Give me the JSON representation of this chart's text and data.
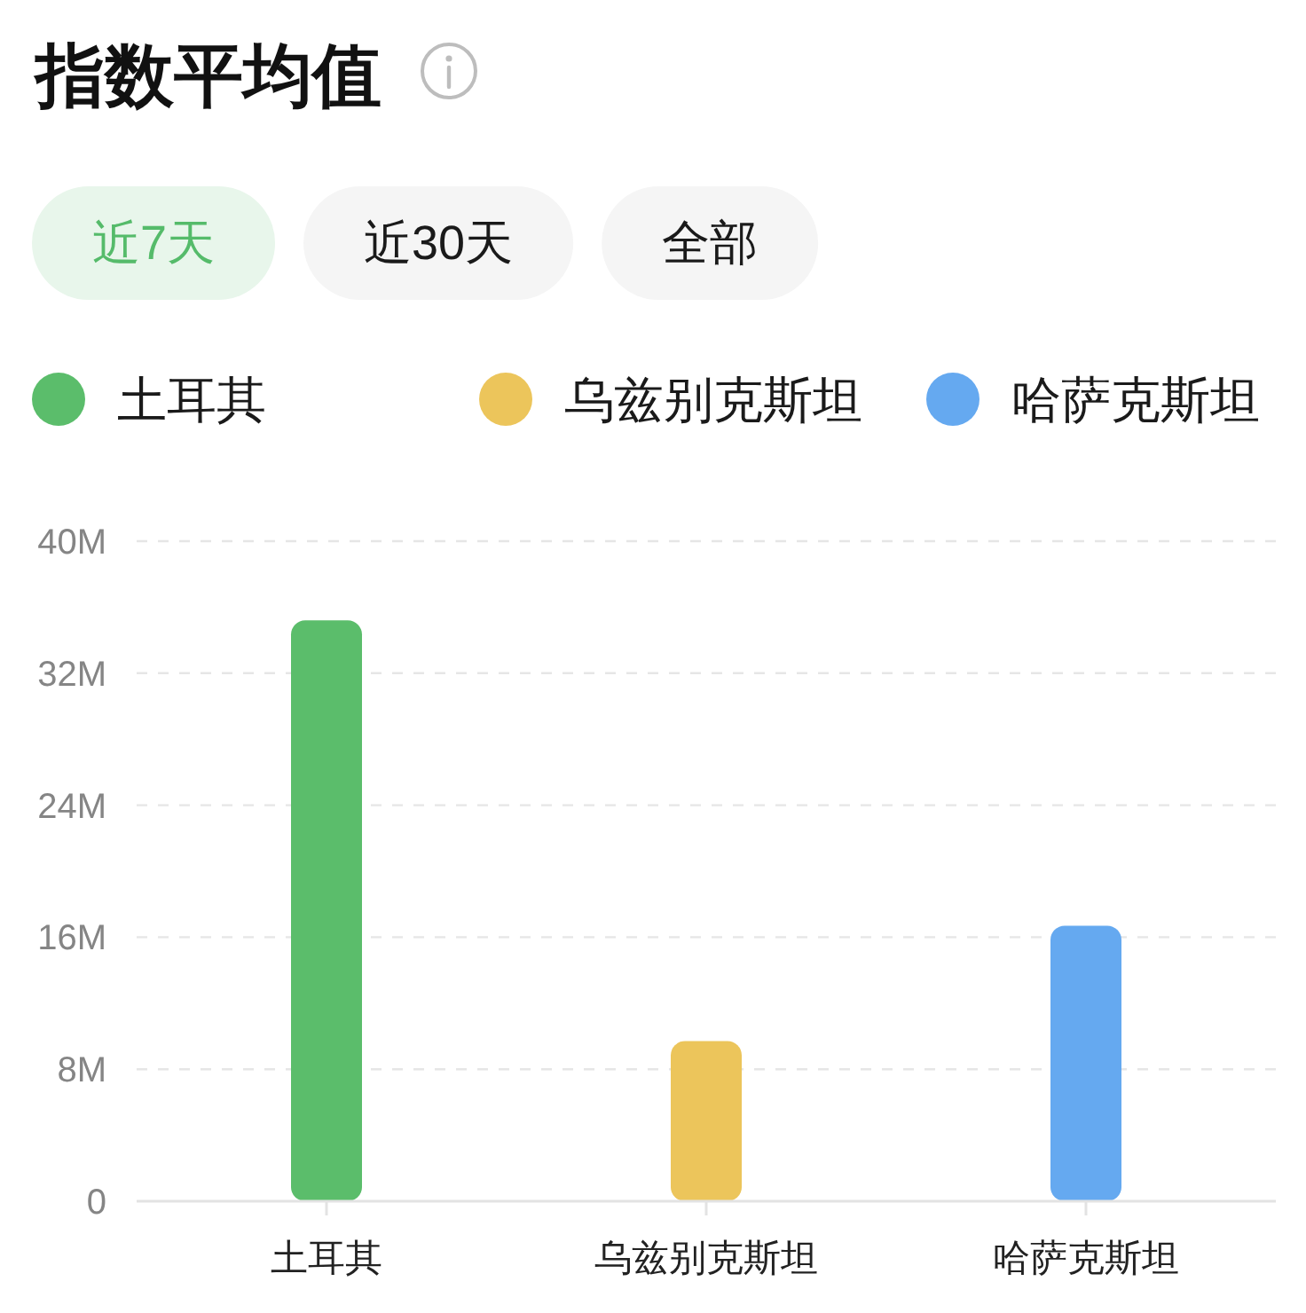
{
  "chart_data": {
    "type": "bar",
    "title": "指数平均值",
    "annotations": [
      "近7天",
      "近30天",
      "全部"
    ],
    "categories": [
      "土耳其",
      "乌兹别克斯坦",
      "哈萨克斯坦"
    ],
    "series": [
      {
        "name": "土耳其",
        "color": "#5bbd6b",
        "values": [
          35200000,
          null,
          null
        ]
      },
      {
        "name": "乌兹别克斯坦",
        "color": "#ecc55b",
        "values": [
          null,
          9700000,
          null
        ]
      },
      {
        "name": "哈萨克斯坦",
        "color": "#65a9f0",
        "values": [
          null,
          null,
          16700000
        ]
      }
    ],
    "stacked": true,
    "ylim": [
      0,
      40000000
    ],
    "yticks": [
      0,
      {
        "value": 8000000,
        "label": "8M"
      },
      {
        "value": 16000000,
        "label": "16M"
      },
      {
        "value": 24000000,
        "label": "24M"
      },
      {
        "value": 32000000,
        "label": "32M"
      },
      {
        "value": 40000000,
        "label": "40M"
      }
    ],
    "grid": "y",
    "legend": "top"
  }
}
